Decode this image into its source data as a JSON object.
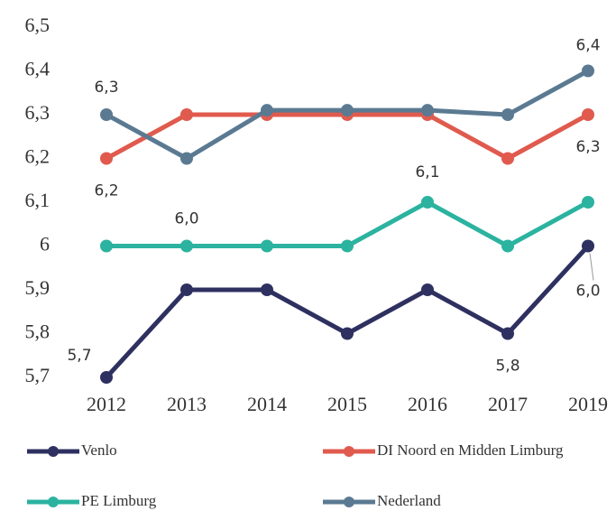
{
  "chart_data": {
    "type": "line",
    "categories": [
      "2012",
      "2013",
      "2014",
      "2015",
      "2016",
      "2017",
      "2019"
    ],
    "series": [
      {
        "name": "Venlo",
        "color": "#2e3060",
        "values": [
          5.7,
          5.9,
          5.9,
          5.8,
          5.9,
          5.8,
          6.0
        ],
        "value_labels": [
          "5,7",
          null,
          null,
          null,
          null,
          "5,8",
          "6,0"
        ]
      },
      {
        "name": "DI Noord en Midden Limburg",
        "color": "#e05a4e",
        "values": [
          6.2,
          6.3,
          6.3,
          6.3,
          6.3,
          6.2,
          6.3
        ],
        "value_labels": [
          "6,2",
          null,
          null,
          null,
          null,
          null,
          "6,3"
        ]
      },
      {
        "name": "PE Limburg",
        "color": "#2bb3a0",
        "values": [
          6.0,
          6.0,
          6.0,
          6.0,
          6.1,
          6.0,
          6.1
        ],
        "value_labels": [
          null,
          "6,0",
          null,
          null,
          "6,1",
          null,
          null
        ]
      },
      {
        "name": "Nederland",
        "color": "#5b7a92",
        "values": [
          6.3,
          6.2,
          6.31,
          6.31,
          6.31,
          6.3,
          6.4
        ],
        "value_labels": [
          "6,3",
          null,
          null,
          null,
          null,
          null,
          "6,4"
        ]
      }
    ],
    "ylim": [
      5.7,
      6.5
    ],
    "yticks": [
      {
        "value": 5.7,
        "label": "5,7"
      },
      {
        "value": 5.8,
        "label": "5,8"
      },
      {
        "value": 5.9,
        "label": "5,9"
      },
      6,
      {
        "value": 6.1,
        "label": "6,1"
      },
      {
        "value": 6.2,
        "label": "6,2"
      },
      {
        "value": 6.3,
        "label": "6,3"
      },
      {
        "value": 6.4,
        "label": "6,4"
      },
      {
        "value": 6.5,
        "label": "6,5"
      }
    ],
    "grid": false,
    "legend": "bottom"
  }
}
